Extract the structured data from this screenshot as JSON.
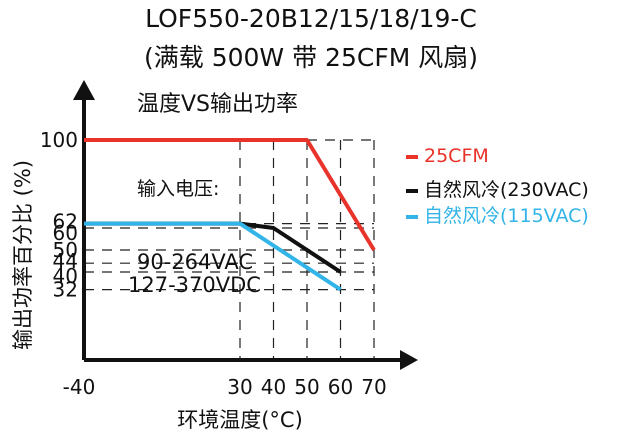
{
  "header": {
    "title_line1": "LOF550-20B12/15/18/19-C",
    "title_line2": "(满载 500W 带 25CFM 风扇)"
  },
  "chart_data": {
    "type": "line",
    "title": "温度VS输出功率",
    "xlabel": "环境温度(°C)",
    "ylabel": "输出功率百分比 (%)",
    "x_ticks": [
      -40,
      30,
      40,
      50,
      60,
      70
    ],
    "x_tick_labels": [
      "-40",
      "30",
      "40",
      "50",
      "60",
      "70"
    ],
    "y_ticks": [
      32,
      40,
      44,
      50,
      60,
      62,
      100
    ],
    "y_tick_labels": [
      "32",
      "40",
      "44",
      "50",
      "60",
      "62",
      "100"
    ],
    "ylim": [
      0,
      115
    ],
    "grid": "dashed reference lines at tick values",
    "series": [
      {
        "name": "25CFM",
        "color": "#e8322a",
        "points": [
          [
            -40,
            100
          ],
          [
            50,
            100
          ],
          [
            70,
            50
          ]
        ]
      },
      {
        "name": "自然风冷(230VAC)",
        "color": "#111111",
        "points": [
          [
            -40,
            62
          ],
          [
            30,
            62
          ],
          [
            40,
            60
          ],
          [
            60,
            40
          ]
        ]
      },
      {
        "name": "自然风冷(115VAC)",
        "color": "#33b4e8",
        "points": [
          [
            -40,
            62
          ],
          [
            30,
            62
          ],
          [
            60,
            32
          ]
        ]
      }
    ],
    "annotations": {
      "input_label": "输入电压:",
      "vac_range": "90-264VAC",
      "vdc_range": "127-370VDC"
    },
    "legend_position": "right"
  }
}
